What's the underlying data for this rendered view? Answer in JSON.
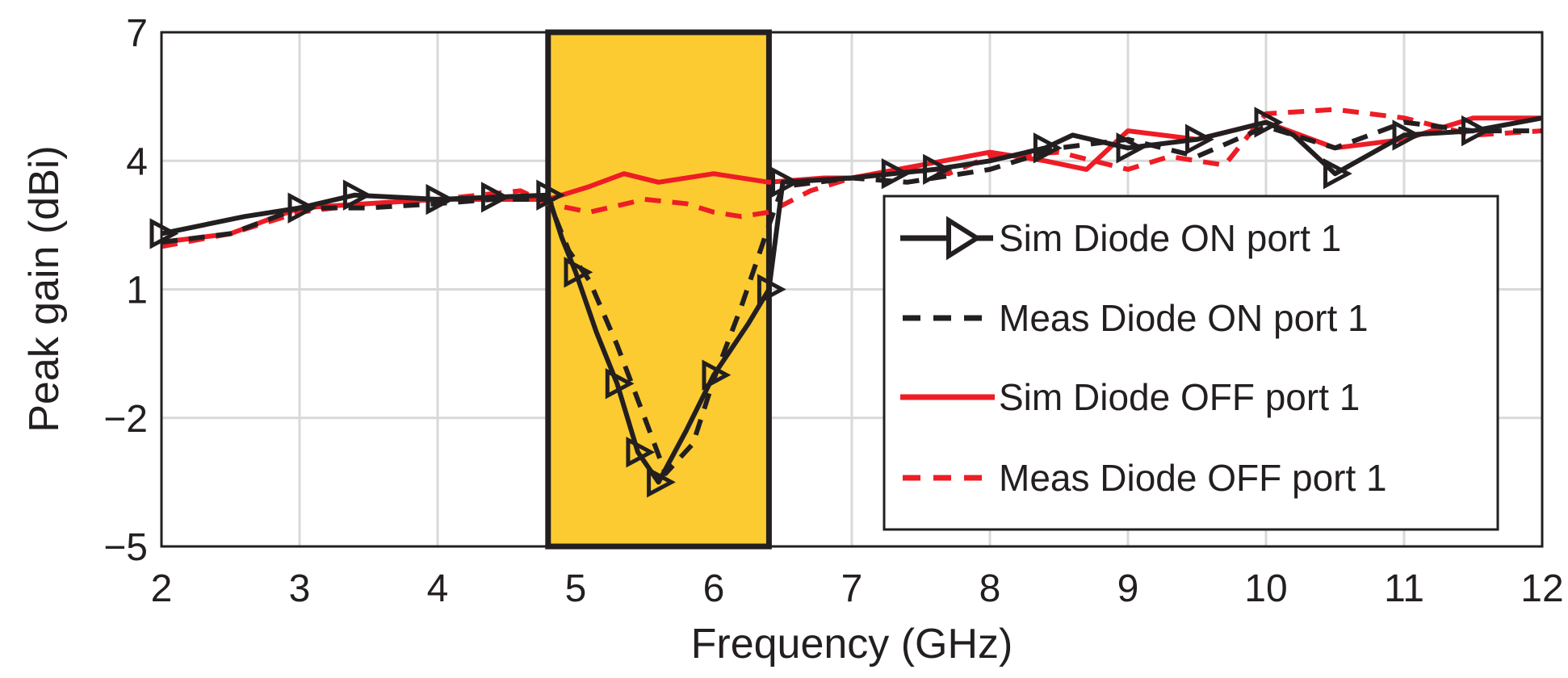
{
  "chart_data": {
    "type": "line",
    "xlabel": "Frequency (GHz)",
    "ylabel": "Peak gain (dBi)",
    "xlim": [
      2,
      12
    ],
    "ylim": [
      -5,
      7
    ],
    "xticks": [
      2,
      3,
      4,
      5,
      6,
      7,
      8,
      9,
      10,
      11,
      12
    ],
    "yticks": [
      -5,
      -2,
      1,
      4,
      7
    ],
    "ytick_labels": [
      "−5",
      "−2",
      "1",
      "4",
      "7"
    ],
    "grid": true,
    "highlight_band": {
      "x0": 4.8,
      "x1": 6.4,
      "color": "#fccb31"
    },
    "legend_position": "right",
    "series": [
      {
        "name": "Sim Diode ON port 1",
        "color": "#231f20",
        "dash": "none",
        "marker": "triangle-right",
        "x": [
          2.0,
          2.6,
          3.0,
          3.4,
          4.0,
          4.4,
          4.8,
          4.9,
          5.0,
          5.15,
          5.3,
          5.45,
          5.6,
          5.8,
          6.0,
          6.25,
          6.4,
          6.5,
          7.0,
          7.3,
          7.6,
          8.0,
          8.4,
          8.6,
          9.0,
          9.5,
          10.0,
          10.2,
          10.5,
          11.0,
          11.5,
          12.0
        ],
        "y": [
          2.3,
          2.7,
          2.9,
          3.2,
          3.1,
          3.15,
          3.2,
          2.2,
          1.4,
          0.0,
          -1.2,
          -2.8,
          -3.5,
          -2.3,
          -1.0,
          0.2,
          1.0,
          3.5,
          3.6,
          3.7,
          3.8,
          4.0,
          4.3,
          4.6,
          4.3,
          4.5,
          4.9,
          4.6,
          3.7,
          4.6,
          4.7,
          5.0
        ]
      },
      {
        "name": "Meas Diode ON port 1",
        "color": "#231f20",
        "dash": "20,14",
        "marker": "none",
        "x": [
          2.0,
          2.5,
          3.0,
          3.5,
          4.0,
          4.4,
          4.8,
          4.95,
          5.1,
          5.3,
          5.5,
          5.65,
          5.85,
          6.0,
          6.2,
          6.4,
          6.5,
          7.0,
          7.4,
          8.0,
          8.5,
          9.0,
          9.5,
          10.0,
          10.5,
          11.0,
          11.5,
          12.0
        ],
        "y": [
          2.1,
          2.3,
          2.9,
          2.9,
          3.0,
          3.1,
          3.1,
          1.9,
          1.2,
          -0.3,
          -2.0,
          -3.3,
          -2.6,
          -1.1,
          0.6,
          2.5,
          3.4,
          3.6,
          3.5,
          3.8,
          4.3,
          4.5,
          4.1,
          4.8,
          4.3,
          4.9,
          4.7,
          4.7
        ]
      },
      {
        "name": "Sim Diode OFF port 1",
        "color": "#ee1c25",
        "dash": "none",
        "marker": "none",
        "x": [
          2.0,
          2.5,
          3.0,
          3.5,
          4.0,
          4.5,
          4.8,
          5.1,
          5.35,
          5.6,
          6.0,
          6.4,
          6.8,
          7.0,
          7.5,
          8.0,
          8.4,
          8.7,
          9.0,
          9.5,
          10.0,
          10.5,
          11.0,
          11.5,
          12.0
        ],
        "y": [
          2.1,
          2.3,
          2.9,
          3.0,
          3.1,
          3.1,
          3.1,
          3.4,
          3.7,
          3.5,
          3.7,
          3.5,
          3.6,
          3.6,
          3.9,
          4.2,
          4.0,
          3.8,
          4.7,
          4.5,
          4.9,
          4.3,
          4.5,
          5.0,
          5.0
        ]
      },
      {
        "name": "Meas Diode OFF port 1",
        "color": "#ee1c25",
        "dash": "20,14",
        "marker": "none",
        "x": [
          2.0,
          2.5,
          3.0,
          3.5,
          4.0,
          4.6,
          4.8,
          5.1,
          5.5,
          5.8,
          6.0,
          6.2,
          6.4,
          6.7,
          7.0,
          7.4,
          7.7,
          8.0,
          8.5,
          9.0,
          9.3,
          9.7,
          10.0,
          10.5,
          11.0,
          11.5,
          12.0
        ],
        "y": [
          2.0,
          2.3,
          2.8,
          3.0,
          3.1,
          3.3,
          3.0,
          2.8,
          3.1,
          3.0,
          2.8,
          2.7,
          2.8,
          3.3,
          3.6,
          3.8,
          3.7,
          4.1,
          4.2,
          3.8,
          4.1,
          3.9,
          5.1,
          5.2,
          5.0,
          4.6,
          4.7
        ]
      }
    ]
  }
}
